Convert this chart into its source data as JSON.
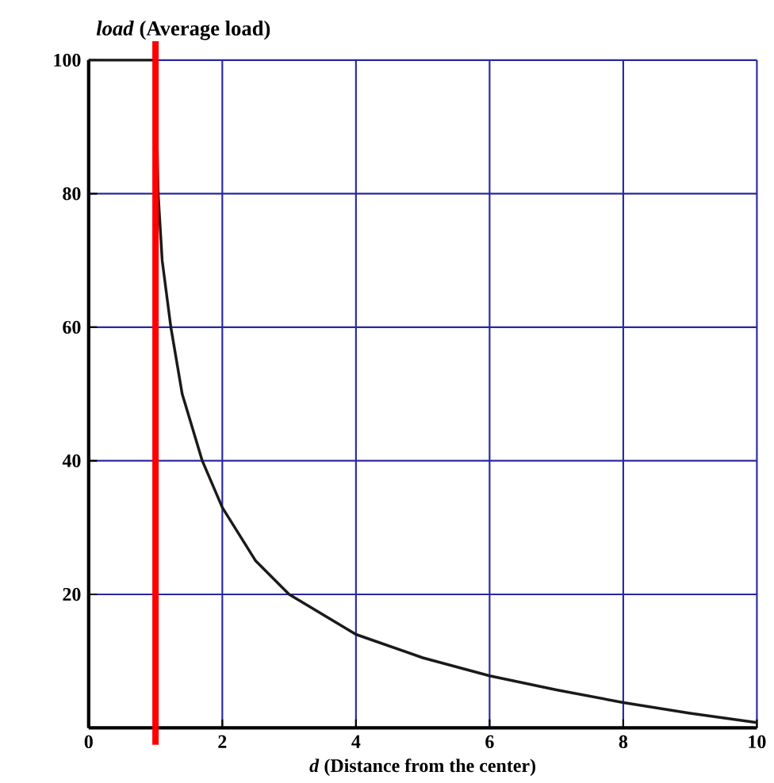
{
  "chart_data": {
    "type": "line",
    "xlabel": "*d* (Distance from the center)",
    "ylabel": "*load* (Average load)",
    "x": [
      0,
      1,
      1.04,
      1.1,
      1.23,
      1.4,
      1.7,
      2,
      2.5,
      3,
      3.5,
      4,
      5,
      6,
      7,
      8,
      9,
      10
    ],
    "series": [
      {
        "color": "#1a1a1a",
        "values": [
          100,
          100,
          80,
          70,
          60,
          50,
          40,
          33,
          25,
          20,
          17,
          14,
          10.5,
          7.8,
          5.7,
          3.8,
          2.2,
          0.8
        ]
      }
    ],
    "xlim": [
      0,
      10
    ],
    "ylim": [
      0,
      100
    ],
    "xticks": [
      0,
      2,
      4,
      6,
      8,
      10
    ],
    "yticks": [
      20,
      40,
      60,
      80,
      100
    ],
    "grid": true,
    "marker": "none",
    "line_style": "solid",
    "ref_lines": [
      {
        "axis": "x",
        "value": 1,
        "color": "#ff0000"
      }
    ]
  }
}
